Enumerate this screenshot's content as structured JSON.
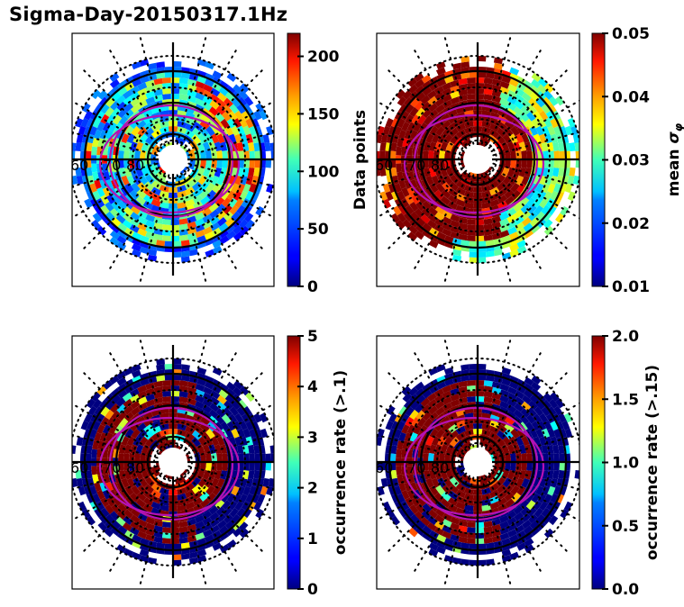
{
  "title": "Sigma-Day-20150317.1Hz",
  "chart_data": [
    {
      "type": "heatmap",
      "projection": "polar (magnetic latitude / MLT)",
      "panel": "top-left",
      "colormap": "jet",
      "colorbar": {
        "label": "Data points",
        "range": [
          0,
          220
        ],
        "ticks": [
          0,
          50,
          100,
          150,
          200
        ],
        "tick_labels": [
          "0",
          "50",
          "100",
          "150",
          "200"
        ]
      },
      "latitude_labels": [
        "60",
        "70",
        "80"
      ],
      "latitude_circles_solid": [
        80,
        70,
        60
      ],
      "dominant_values": "mostly 20-130 (blue/cyan/green), scattered 150-210 (yellow/orange/red) on dusk side",
      "oval_overlay_color": "#b412b4"
    },
    {
      "type": "heatmap",
      "projection": "polar (magnetic latitude / MLT)",
      "panel": "top-right",
      "colormap": "jet",
      "colorbar": {
        "label": "mean σ_φ",
        "range": [
          0.01,
          0.05
        ],
        "ticks": [
          0.01,
          0.02,
          0.03,
          0.04,
          0.05
        ],
        "tick_labels": [
          "0.01",
          "0.02",
          "0.03",
          "0.04",
          "0.05"
        ]
      },
      "latitude_labels": [
        "60",
        "70",
        "80"
      ],
      "latitude_circles_solid": [
        80,
        70,
        60
      ],
      "dominant_values": "mostly saturated at ≥0.05 (dark red); 0.02-0.03 (cyan/green) on outer right side",
      "oval_overlay_color": "#b412b4"
    },
    {
      "type": "heatmap",
      "projection": "polar (magnetic latitude / MLT)",
      "panel": "bottom-left",
      "colormap": "jet",
      "colorbar": {
        "label": "occurrence rate (>.1)",
        "range": [
          0,
          5
        ],
        "ticks": [
          0,
          1,
          2,
          3,
          4,
          5
        ],
        "tick_labels": [
          "0",
          "1",
          "2",
          "3",
          "4",
          "5"
        ]
      },
      "latitude_labels": [
        "60",
        "70",
        "80"
      ],
      "latitude_circles_solid": [
        80,
        70,
        60
      ],
      "dominant_values": "mostly saturated at ≥5 (dark red) in inner rings; 0 (dark blue) in outer ring and right side",
      "oval_overlay_color": "#b412b4"
    },
    {
      "type": "heatmap",
      "projection": "polar (magnetic latitude / MLT)",
      "panel": "bottom-right",
      "colormap": "jet",
      "colorbar": {
        "label": "occurrence rate (>.15)",
        "range": [
          0.0,
          2.0
        ],
        "ticks": [
          0.0,
          0.5,
          1.0,
          1.5,
          2.0
        ],
        "tick_labels": [
          "0.0",
          "0.5",
          "1.0",
          "1.5",
          "2.0"
        ]
      },
      "latitude_labels": [
        "60",
        "70",
        "80"
      ],
      "latitude_circles_solid": [
        80,
        70,
        60
      ],
      "dominant_values": "mostly saturated at ≥2.0 (dark red) left side; 0.0 (dark blue) outer ring and right side",
      "oval_overlay_color": "#b412b4"
    }
  ]
}
